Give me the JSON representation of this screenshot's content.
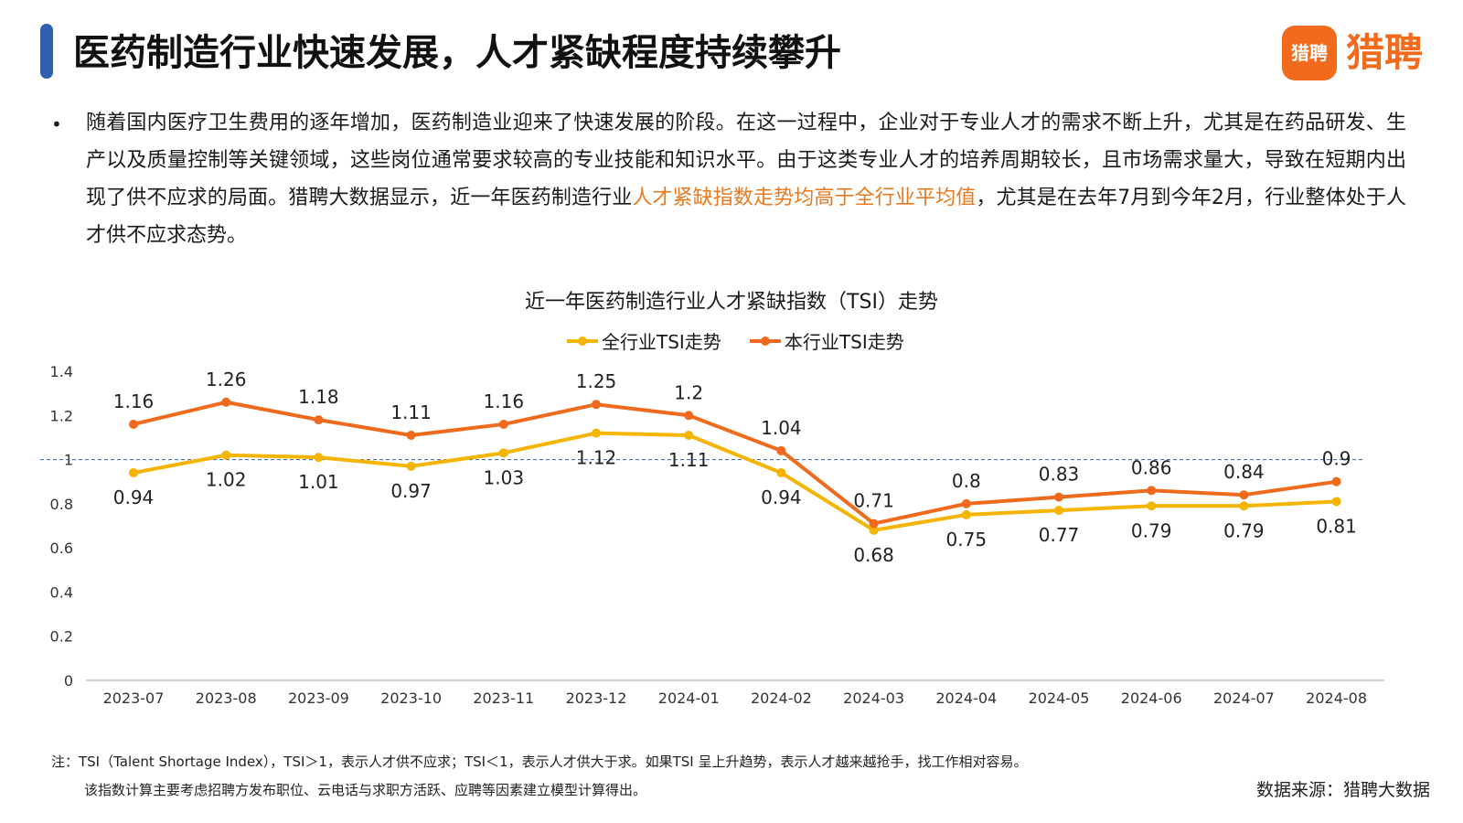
{
  "header": {
    "title": "医药制造行业快速发展，人才紧缺程度持续攀升",
    "logo_mark": "猎聘",
    "logo_text": "猎聘"
  },
  "intro": {
    "bullet": "•",
    "before": "随着国内医疗卫生费用的逐年增加，医药制造业迎来了快速发展的阶段。在这一过程中，企业对于专业人才的需求不断上升，尤其是在药品研发、生产以及质量控制等关键领域，这些岗位通常要求较高的专业技能和知识水平。由于这类专业人才的培养周期较长，且市场需求量大，导致在短期内出现了供不应求的局面。猎聘大数据显示，近一年医药制造行业",
    "highlight": "人才紧缺指数走势均高于全行业平均值",
    "after": "，尤其是在去年7月到今年2月，行业整体处于人才供不应求态势。"
  },
  "colors": {
    "accent_blue": "#2f5fb3",
    "brand_orange": "#f26b1d",
    "highlight": "#e8791e",
    "series_all": "#f5b400",
    "series_industry": "#ef6a1c"
  },
  "chart_data": {
    "type": "line",
    "title": "近一年医药制造行业人才紧缺指数（TSI）走势",
    "categories": [
      "2023-07",
      "2023-08",
      "2023-09",
      "2023-10",
      "2023-11",
      "2023-12",
      "2024-01",
      "2024-02",
      "2024-03",
      "2024-04",
      "2024-05",
      "2024-06",
      "2024-07",
      "2024-08"
    ],
    "series": [
      {
        "name": "全行业TSI走势",
        "color": "#f5b400",
        "values": [
          0.94,
          1.02,
          1.01,
          0.97,
          1.03,
          1.12,
          1.11,
          0.94,
          0.68,
          0.75,
          0.77,
          0.79,
          0.79,
          0.81
        ],
        "labels": [
          "0.94",
          "1.02",
          "1.01",
          "0.97",
          "1.03",
          "1.12",
          "1.11",
          "0.94",
          "0.68",
          "0.75",
          "0.77",
          "0.79",
          "0.79",
          "0.81"
        ]
      },
      {
        "name": "本行业TSI走势",
        "color": "#ef6a1c",
        "values": [
          1.16,
          1.26,
          1.18,
          1.11,
          1.16,
          1.25,
          1.2,
          1.04,
          0.71,
          0.8,
          0.83,
          0.86,
          0.84,
          0.9
        ],
        "labels": [
          "1.16",
          "1.26",
          "1.18",
          "1.11",
          "1.16",
          "1.25",
          "1.2",
          "1.04",
          "0.71",
          "0.8",
          "0.83",
          "0.86",
          "0.84",
          "0.9"
        ]
      }
    ],
    "yticks": [
      "0",
      "0.2",
      "0.4",
      "0.6",
      "0.8",
      "1",
      "1.2",
      "1.4"
    ],
    "ylim": [
      0,
      1.4
    ],
    "reference_line": 1,
    "grid": false,
    "legend_position": "top-center"
  },
  "footer": {
    "note_line1": "注：TSI（Talent Shortage Index），TSI＞1，表示人才供不应求；TSI＜1，表示人才供大于求。如果TSI 呈上升趋势，表示人才越来越抢手，找工作相对容易。",
    "note_line2": "该指数计算主要考虑招聘方发布职位、云电话与求职方活跃、应聘等因素建立模型计算得出。",
    "source": "数据来源：猎聘大数据"
  }
}
